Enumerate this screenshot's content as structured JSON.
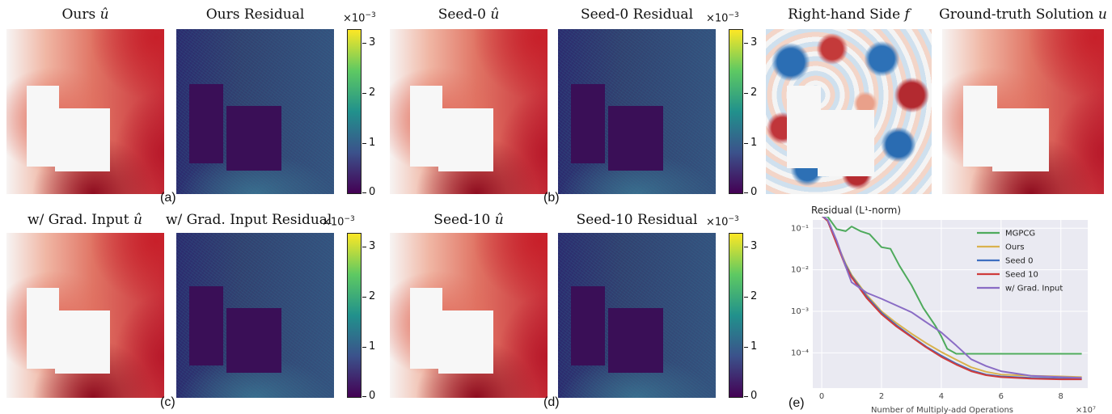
{
  "panels": {
    "ours_u": {
      "title": "Ours",
      "var": "û"
    },
    "ours_res": {
      "title": "Ours Residual"
    },
    "seed0_u": {
      "title": "Seed-0",
      "var": "û"
    },
    "seed0_res": {
      "title": "Seed-0 Residual"
    },
    "rhs": {
      "title": "Right-hand Side",
      "var": "f"
    },
    "gt": {
      "title": "Ground-truth Solution",
      "var": "u"
    },
    "grad_u": {
      "title": "w/ Grad. Input",
      "var": "û"
    },
    "grad_res": {
      "title": "w/ Grad. Input Residual"
    },
    "seed10_u": {
      "title": "Seed-10",
      "var": "û"
    },
    "seed10_res": {
      "title": "Seed-10 Residual"
    }
  },
  "colorbar": {
    "exponent_base": "×10",
    "exponent_power": "−3",
    "ticks": [
      "3",
      "2",
      "1",
      "0"
    ],
    "range": [
      0,
      3.2
    ]
  },
  "sublabels": [
    "(a)",
    "(b)",
    "(c)",
    "(d)",
    "(e)"
  ],
  "chart_data": {
    "type": "line",
    "title": "Residual (L¹-norm)",
    "xlabel": "Number of Multiply-add Operations",
    "x_exponent": "×10⁷",
    "xlim": [
      -0.3,
      8.9
    ],
    "ylim_log10": [
      -4.85,
      -0.8
    ],
    "yscale": "log",
    "xticks": [
      0,
      2,
      4,
      6,
      8
    ],
    "yticks": [
      {
        "exp": -1,
        "label": "10⁻¹"
      },
      {
        "exp": -2,
        "label": "10⁻²"
      },
      {
        "exp": -3,
        "label": "10⁻³"
      },
      {
        "exp": -4,
        "label": "10⁻⁴"
      }
    ],
    "grid": true,
    "legend": "top-right",
    "series": [
      {
        "name": "MGPCG",
        "color": "#4eaa5c",
        "x": [
          0,
          0.2,
          0.5,
          0.8,
          1.0,
          1.3,
          1.6,
          2.0,
          2.3,
          2.6,
          3.0,
          3.4,
          3.8,
          4.0,
          4.2,
          4.5,
          5.0,
          6.0,
          7.0,
          8.0,
          8.7
        ],
        "y": [
          0.2,
          0.19,
          0.095,
          0.085,
          0.11,
          0.085,
          0.072,
          0.035,
          0.032,
          0.0125,
          0.0043,
          0.0012,
          0.00045,
          0.00025,
          0.000125,
          9.5e-05,
          9.5e-05,
          9.5e-05,
          9.5e-05,
          9.5e-05,
          9.5e-05
        ]
      },
      {
        "name": "Ours",
        "color": "#d9b24e",
        "x": [
          0,
          0.2,
          0.5,
          0.8,
          1.0,
          1.5,
          2.0,
          2.5,
          3.0,
          3.5,
          4.0,
          4.5,
          5.0,
          5.5,
          6.0,
          7.0,
          8.0,
          8.7
        ],
        "y": [
          0.2,
          0.15,
          0.045,
          0.014,
          0.0075,
          0.0025,
          0.001,
          0.00052,
          0.00029,
          0.00017,
          0.000105,
          6.8e-05,
          4.5e-05,
          3.5e-05,
          3e-05,
          2.8e-05,
          2.7e-05,
          2.6e-05
        ]
      },
      {
        "name": "Seed 0",
        "color": "#3f6fc0",
        "x": [
          0,
          0.2,
          0.5,
          0.8,
          1.0,
          1.5,
          2.0,
          2.5,
          3.0,
          3.5,
          4.0,
          4.5,
          5.0,
          5.5,
          6.0,
          7.0,
          8.0,
          8.7
        ],
        "y": [
          0.2,
          0.15,
          0.043,
          0.013,
          0.007,
          0.0023,
          0.00092,
          0.00046,
          0.00025,
          0.00014,
          8.6e-05,
          5.5e-05,
          3.8e-05,
          3e-05,
          2.7e-05,
          2.5e-05,
          2.4e-05,
          2.4e-05
        ]
      },
      {
        "name": "Seed 10",
        "color": "#cf3c3c",
        "x": [
          0,
          0.2,
          0.5,
          0.8,
          1.0,
          1.5,
          2.0,
          2.5,
          3.0,
          3.5,
          4.0,
          4.5,
          5.0,
          5.5,
          6.0,
          7.0,
          8.0,
          8.7
        ],
        "y": [
          0.2,
          0.15,
          0.042,
          0.012,
          0.0066,
          0.0021,
          0.00085,
          0.00043,
          0.00024,
          0.000135,
          8e-05,
          5.2e-05,
          3.6e-05,
          2.9e-05,
          2.6e-05,
          2.4e-05,
          2.3e-05,
          2.3e-05
        ]
      },
      {
        "name": "w/ Grad. Input",
        "color": "#8a6cc5",
        "x": [
          0,
          0.2,
          0.5,
          0.8,
          1.0,
          1.5,
          2.0,
          3.0,
          4.0,
          4.5,
          5.0,
          5.5,
          6.0,
          7.0,
          8.0,
          8.7
        ],
        "y": [
          0.2,
          0.16,
          0.05,
          0.012,
          0.005,
          0.0028,
          0.002,
          0.00095,
          0.00031,
          0.00015,
          7e-05,
          4.8e-05,
          3.6e-05,
          2.8e-05,
          2.6e-05,
          2.5e-05
        ]
      }
    ]
  }
}
